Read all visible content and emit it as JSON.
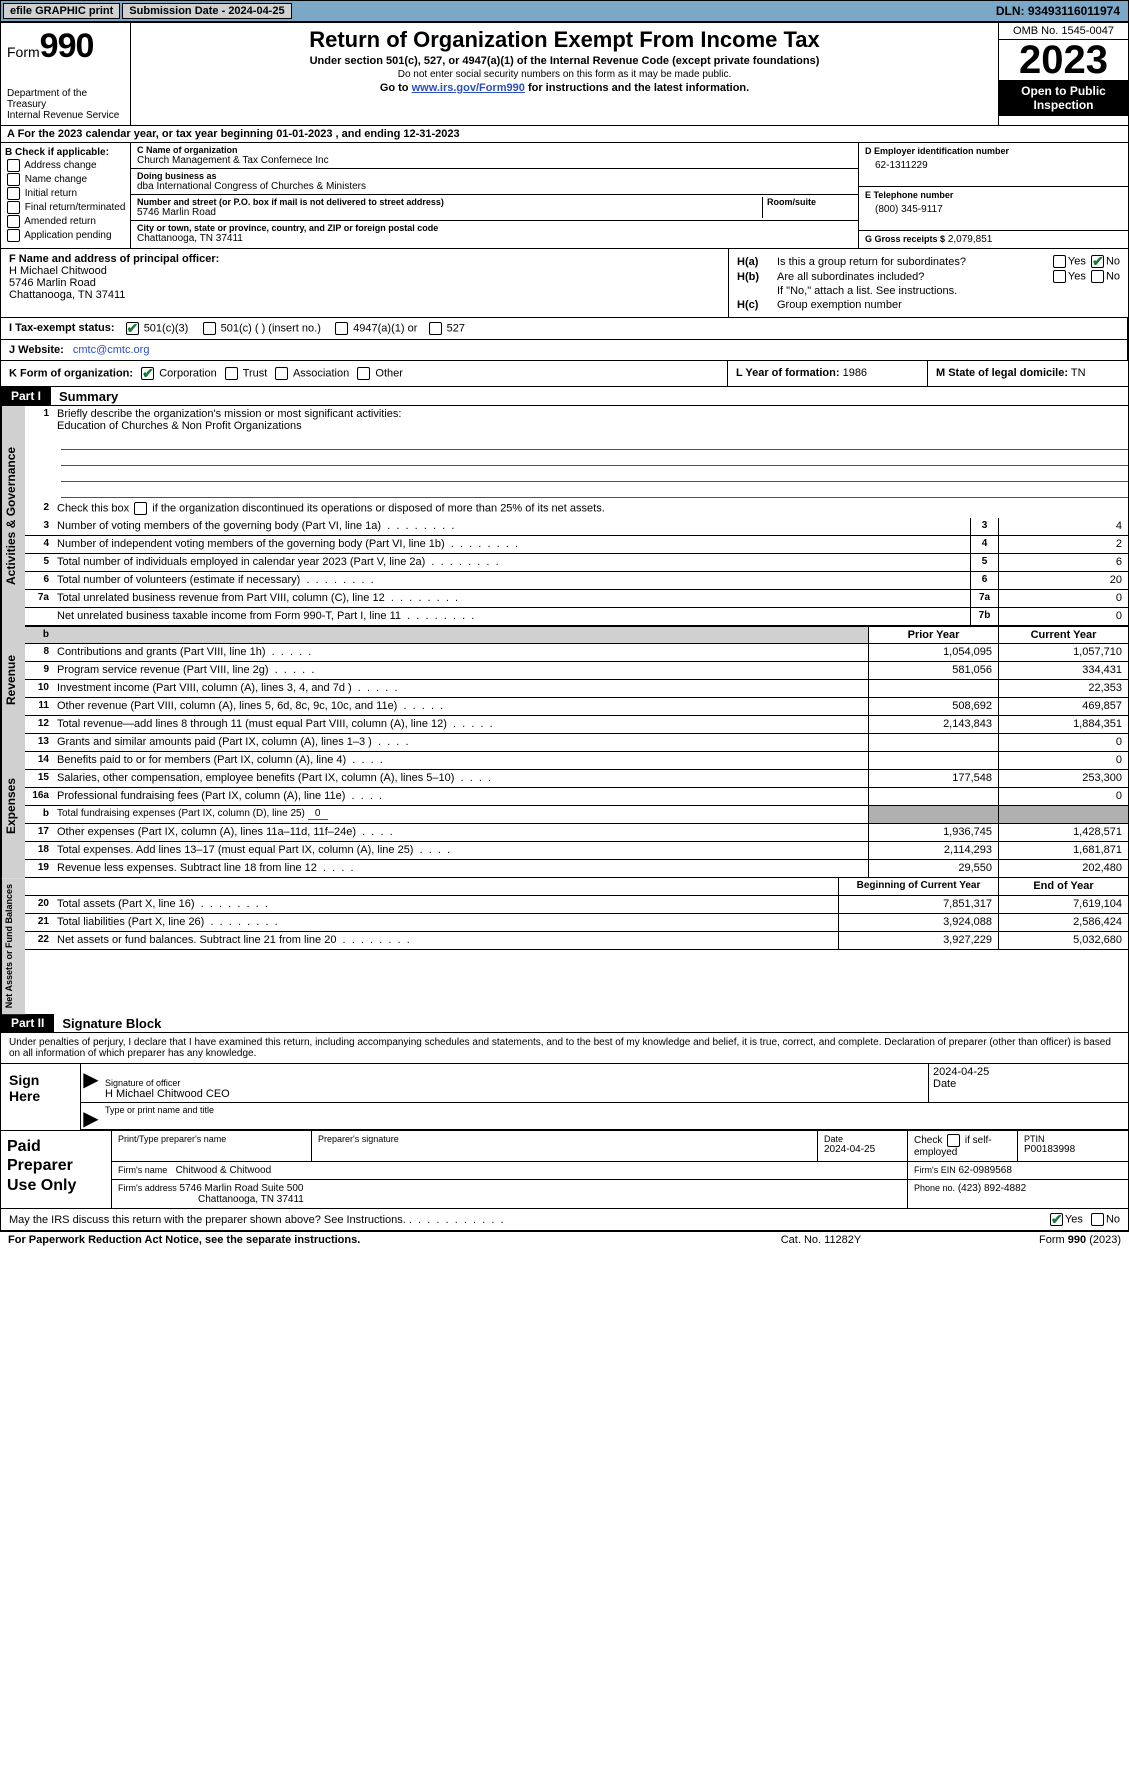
{
  "topbar": {
    "efile": "efile GRAPHIC print",
    "submission": "Submission Date - 2024-04-25",
    "dln": "DLN: 93493116011974"
  },
  "header": {
    "form_label": "Form",
    "form_no": "990",
    "dept": "Department of the Treasury\nInternal Revenue Service",
    "title": "Return of Organization Exempt From Income Tax",
    "sub1": "Under section 501(c), 527, or 4947(a)(1) of the Internal Revenue Code (except private foundations)",
    "sub2": "Do not enter social security numbers on this form as it may be made public.",
    "sub3_pre": "Go to ",
    "sub3_link": "www.irs.gov/Form990",
    "sub3_post": " for instructions and the latest information.",
    "omb": "OMB No. 1545-0047",
    "year": "2023",
    "open": "Open to Public Inspection"
  },
  "rowA": "A  For the 2023 calendar year, or tax year beginning 01-01-2023    , and ending 12-31-2023",
  "colB": {
    "hdr": "B Check if applicable:",
    "items": [
      "Address change",
      "Name change",
      "Initial return",
      "Final return/terminated",
      "Amended return",
      "Application pending"
    ]
  },
  "colC": {
    "name_lbl": "C Name of organization",
    "name": "Church Management & Tax Confernece Inc",
    "dba_lbl": "Doing business as",
    "dba": "dba International Congress of Churches & Ministers",
    "street_lbl": "Number and street (or P.O. box if mail is not delivered to street address)",
    "street": "5746 Marlin Road",
    "room_lbl": "Room/suite",
    "city_lbl": "City or town, state or province, country, and ZIP or foreign postal code",
    "city": "Chattanooga, TN  37411"
  },
  "colDE": {
    "ein_lbl": "D Employer identification number",
    "ein": "62-1311229",
    "tel_lbl": "E Telephone number",
    "tel": "(800) 345-9117",
    "gross_lbl": "G Gross receipts $",
    "gross": "2,079,851"
  },
  "colF": {
    "lbl": "F  Name and address of principal officer:",
    "name": "H Michael Chitwood",
    "street": "5746 Marlin Road",
    "city": "Chattanooga, TN  37411"
  },
  "colH": {
    "ha_lbl": "H(a)",
    "ha_txt": "Is this a group return for subordinates?",
    "ha_no_checked": true,
    "hb_lbl": "H(b)",
    "hb_txt": "Are all subordinates included?",
    "hb_note": "If \"No,\" attach a list. See instructions.",
    "hc_lbl": "H(c)",
    "hc_txt": "Group exemption number"
  },
  "rowI": {
    "i_lbl": "I   Tax-exempt status:",
    "opts": [
      "501(c)(3)",
      "501(c) (  ) (insert no.)",
      "4947(a)(1) or",
      "527"
    ],
    "checked_idx": 0,
    "j_lbl": "J   Website:",
    "website": "cmtc@cmtc.org"
  },
  "rowK": {
    "k_lbl": "K Form of organization:",
    "opts": [
      "Corporation",
      "Trust",
      "Association",
      "Other"
    ],
    "checked_idx": 0,
    "l_lbl": "L Year of formation:",
    "l_val": "1986",
    "m_lbl": "M State of legal domicile:",
    "m_val": "TN"
  },
  "part1": {
    "hdr": "Part I",
    "title": "Summary",
    "line1_lbl": "Briefly describe the organization's mission or most significant activities:",
    "line1_val": "Education of Churches & Non Profit Organizations",
    "line2": "Check this box      if the organization discontinued its operations or disposed of more than 25% of its net assets.",
    "rows_gov": [
      {
        "n": "3",
        "d": "Number of voting members of the governing body (Part VI, line 1a)",
        "box": "3",
        "v": "4"
      },
      {
        "n": "4",
        "d": "Number of independent voting members of the governing body (Part VI, line 1b)",
        "box": "4",
        "v": "2"
      },
      {
        "n": "5",
        "d": "Total number of individuals employed in calendar year 2023 (Part V, line 2a)",
        "box": "5",
        "v": "6"
      },
      {
        "n": "6",
        "d": "Total number of volunteers (estimate if necessary)",
        "box": "6",
        "v": "20"
      },
      {
        "n": "7a",
        "d": "Total unrelated business revenue from Part VIII, column (C), line 12",
        "box": "7a",
        "v": "0"
      },
      {
        "n": "",
        "d": "Net unrelated business taxable income from Form 990-T, Part I, line 11",
        "box": "7b",
        "v": "0"
      }
    ],
    "prior_hdr": "Prior Year",
    "current_hdr": "Current Year",
    "rows_rev": [
      {
        "n": "8",
        "d": "Contributions and grants (Part VIII, line 1h)",
        "p": "1,054,095",
        "c": "1,057,710"
      },
      {
        "n": "9",
        "d": "Program service revenue (Part VIII, line 2g)",
        "p": "581,056",
        "c": "334,431"
      },
      {
        "n": "10",
        "d": "Investment income (Part VIII, column (A), lines 3, 4, and 7d )",
        "p": "",
        "c": "22,353"
      },
      {
        "n": "11",
        "d": "Other revenue (Part VIII, column (A), lines 5, 6d, 8c, 9c, 10c, and 11e)",
        "p": "508,692",
        "c": "469,857"
      },
      {
        "n": "12",
        "d": "Total revenue—add lines 8 through 11 (must equal Part VIII, column (A), line 12)",
        "p": "2,143,843",
        "c": "1,884,351"
      }
    ],
    "rows_exp": [
      {
        "n": "13",
        "d": "Grants and similar amounts paid (Part IX, column (A), lines 1–3 )",
        "p": "",
        "c": "0"
      },
      {
        "n": "14",
        "d": "Benefits paid to or for members (Part IX, column (A), line 4)",
        "p": "",
        "c": "0"
      },
      {
        "n": "15",
        "d": "Salaries, other compensation, employee benefits (Part IX, column (A), lines 5–10)",
        "p": "177,548",
        "c": "253,300"
      },
      {
        "n": "16a",
        "d": "Professional fundraising fees (Part IX, column (A), line 11e)",
        "p": "",
        "c": "0"
      },
      {
        "n": "b",
        "d": "Total fundraising expenses (Part IX, column (D), line 25) ",
        "p": "grey",
        "c": "grey",
        "fund": "0"
      },
      {
        "n": "17",
        "d": "Other expenses (Part IX, column (A), lines 11a–11d, 11f–24e)",
        "p": "1,936,745",
        "c": "1,428,571"
      },
      {
        "n": "18",
        "d": "Total expenses. Add lines 13–17 (must equal Part IX, column (A), line 25)",
        "p": "2,114,293",
        "c": "1,681,871"
      },
      {
        "n": "19",
        "d": "Revenue less expenses. Subtract line 18 from line 12",
        "p": "29,550",
        "c": "202,480"
      }
    ],
    "net_hdr_p": "Beginning of Current Year",
    "net_hdr_c": "End of Year",
    "rows_net": [
      {
        "n": "20",
        "d": "Total assets (Part X, line 16)",
        "p": "7,851,317",
        "c": "7,619,104"
      },
      {
        "n": "21",
        "d": "Total liabilities (Part X, line 26)",
        "p": "3,924,088",
        "c": "2,586,424"
      },
      {
        "n": "22",
        "d": "Net assets or fund balances. Subtract line 21 from line 20",
        "p": "3,927,229",
        "c": "5,032,680"
      }
    ]
  },
  "part2": {
    "hdr": "Part II",
    "title": "Signature Block",
    "perjury": "Under penalties of perjury, I declare that I have examined this return, including accompanying schedules and statements, and to the best of my knowledge and belief, it is true, correct, and complete. Declaration of preparer (other than officer) is based on all information of which preparer has any knowledge."
  },
  "sign": {
    "left": "Sign Here",
    "sig_date": "2024-04-25",
    "sig_lbl": "Signature of officer",
    "sig_name": "H Michael Chitwood CEO",
    "date_lbl": "Date",
    "type_lbl": "Type or print name and title"
  },
  "prep": {
    "left": "Paid Preparer Use Only",
    "name_lbl": "Print/Type preparer's name",
    "sig_lbl": "Preparer's signature",
    "date_lbl": "Date",
    "date": "2024-04-25",
    "check_lbl": "Check       if self-employed",
    "ptin_lbl": "PTIN",
    "ptin": "P00183998",
    "firm_name_lbl": "Firm's name",
    "firm_name": "Chitwood & Chitwood",
    "firm_ein_lbl": "Firm's EIN",
    "firm_ein": "62-0989568",
    "firm_addr_lbl": "Firm's address",
    "firm_addr1": "5746 Marlin Road Suite 500",
    "firm_addr2": "Chattanooga, TN  37411",
    "phone_lbl": "Phone no.",
    "phone": "(423) 892-4882"
  },
  "footer": {
    "discuss": "May the IRS discuss this return with the preparer shown above? See Instructions.",
    "yes_checked": true,
    "paperwork": "For Paperwork Reduction Act Notice, see the separate instructions.",
    "cat": "Cat. No. 11282Y",
    "form": "Form 990 (2023)"
  }
}
